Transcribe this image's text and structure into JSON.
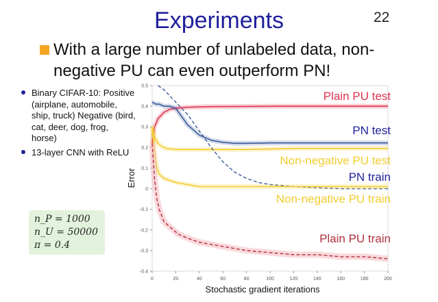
{
  "slide": {
    "title": "Experiments",
    "page_number": "22",
    "main_point": "With a large number of unlabeled data, non-negative PU can even outperform PN!",
    "bullets": [
      "Binary CIFAR-10: Positive (airplane, automobile, ship, truck) Negative (bird, cat, deer, dog, frog, horse)",
      "13-layer CNN with ReLU"
    ],
    "params": [
      "n_P = 1000",
      "n_U = 50000",
      "π = 0.4"
    ]
  },
  "chart_data": {
    "type": "line",
    "xlabel": "Stochastic gradient iterations",
    "ylabel": "Error",
    "xlim": [
      0,
      200
    ],
    "ylim": [
      -0.4,
      0.5
    ],
    "xticks": [
      0,
      20,
      40,
      60,
      80,
      100,
      120,
      140,
      160,
      180,
      200
    ],
    "yticks": [
      -0.4,
      -0.3,
      -0.2,
      -0.1,
      0,
      0.1,
      0.2,
      0.3,
      0.4,
      0.5
    ],
    "series": [
      {
        "name": "Plain PU test",
        "color": "#e0334e",
        "dash": false,
        "x": [
          0,
          2,
          5,
          10,
          15,
          20,
          30,
          50,
          80,
          120,
          160,
          200
        ],
        "y": [
          0.22,
          0.3,
          0.34,
          0.37,
          0.385,
          0.39,
          0.395,
          0.398,
          0.399,
          0.4,
          0.4,
          0.4
        ]
      },
      {
        "name": "PN test",
        "color": "#3b5a9a",
        "dash": false,
        "x": [
          0,
          3,
          6,
          10,
          15,
          20,
          25,
          30,
          40,
          50,
          60,
          70,
          80,
          100,
          120,
          150,
          180,
          200
        ],
        "y": [
          0.42,
          0.41,
          0.41,
          0.4,
          0.4,
          0.39,
          0.35,
          0.31,
          0.26,
          0.235,
          0.225,
          0.22,
          0.22,
          0.222,
          0.222,
          0.222,
          0.222,
          0.222
        ]
      },
      {
        "name": "Non-negative PU test",
        "color": "#f2cc2e",
        "dash": false,
        "x": [
          0,
          2,
          5,
          8,
          12,
          20,
          30,
          50,
          80,
          120,
          160,
          200
        ],
        "y": [
          0.3,
          0.25,
          0.22,
          0.205,
          0.195,
          0.19,
          0.19,
          0.19,
          0.19,
          0.195,
          0.195,
          0.195
        ]
      },
      {
        "name": "PN train",
        "color": "#3b5a9a",
        "dash": true,
        "x": [
          5,
          10,
          20,
          30,
          40,
          50,
          60,
          70,
          80,
          90,
          100,
          110,
          120,
          140,
          160,
          180,
          200
        ],
        "y": [
          0.5,
          0.48,
          0.42,
          0.36,
          0.28,
          0.2,
          0.13,
          0.08,
          0.05,
          0.03,
          0.02,
          0.015,
          0.01,
          0.005,
          0.0,
          0.0,
          0.0
        ]
      },
      {
        "name": "Non-negative PU train",
        "color": "#f2cc2e",
        "dash": false,
        "x": [
          0,
          2,
          4,
          6,
          10,
          15,
          20,
          30,
          40,
          60,
          80,
          100,
          140,
          200
        ],
        "y": [
          0.3,
          0.18,
          0.1,
          0.07,
          0.05,
          0.04,
          0.03,
          0.02,
          0.01,
          0.01,
          0.01,
          0.01,
          0.01,
          0.01
        ]
      },
      {
        "name": "Plain PU train",
        "color": "#b0303c",
        "dash": true,
        "x": [
          0,
          2,
          4,
          6,
          8,
          10,
          14,
          18,
          22,
          26,
          30,
          40,
          50,
          60,
          70,
          80,
          100,
          120,
          140,
          160,
          180,
          200
        ],
        "y": [
          0.22,
          0.05,
          -0.05,
          -0.1,
          -0.13,
          -0.16,
          -0.18,
          -0.2,
          -0.22,
          -0.23,
          -0.24,
          -0.26,
          -0.27,
          -0.28,
          -0.29,
          -0.3,
          -0.31,
          -0.32,
          -0.32,
          -0.33,
          -0.33,
          -0.34
        ]
      }
    ]
  }
}
